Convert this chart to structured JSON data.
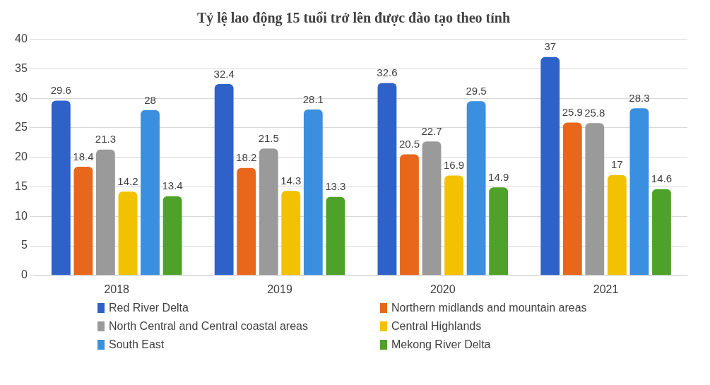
{
  "chart_data": {
    "type": "bar",
    "title": "Tỷ lệ lao động 15 tuổi trở lên được đào tạo theo tỉnh",
    "categories": [
      "2018",
      "2019",
      "2020",
      "2021"
    ],
    "series": [
      {
        "name": "Red River Delta",
        "color": "#2e62c9",
        "values": [
          29.6,
          32.4,
          32.6,
          37
        ]
      },
      {
        "name": "Northern midlands and mountain areas",
        "color": "#e8671a",
        "values": [
          18.4,
          18.2,
          20.5,
          25.9
        ]
      },
      {
        "name": "North Central and Central coastal areas",
        "color": "#9a9a9a",
        "values": [
          21.3,
          21.5,
          22.7,
          25.8
        ]
      },
      {
        "name": "Central Highlands",
        "color": "#f2c100",
        "values": [
          14.2,
          14.3,
          16.9,
          17
        ]
      },
      {
        "name": "South East",
        "color": "#3a8fe0",
        "values": [
          28,
          28.1,
          29.5,
          28.3
        ]
      },
      {
        "name": "Mekong River Delta",
        "color": "#4ea22a",
        "values": [
          13.4,
          13.3,
          14.9,
          14.6
        ]
      }
    ],
    "ylim": [
      0,
      40
    ],
    "yticks": [
      0,
      5,
      10,
      15,
      20,
      25,
      30,
      35,
      40
    ],
    "grid": "y",
    "legend": "bottom",
    "data_labels": true
  }
}
